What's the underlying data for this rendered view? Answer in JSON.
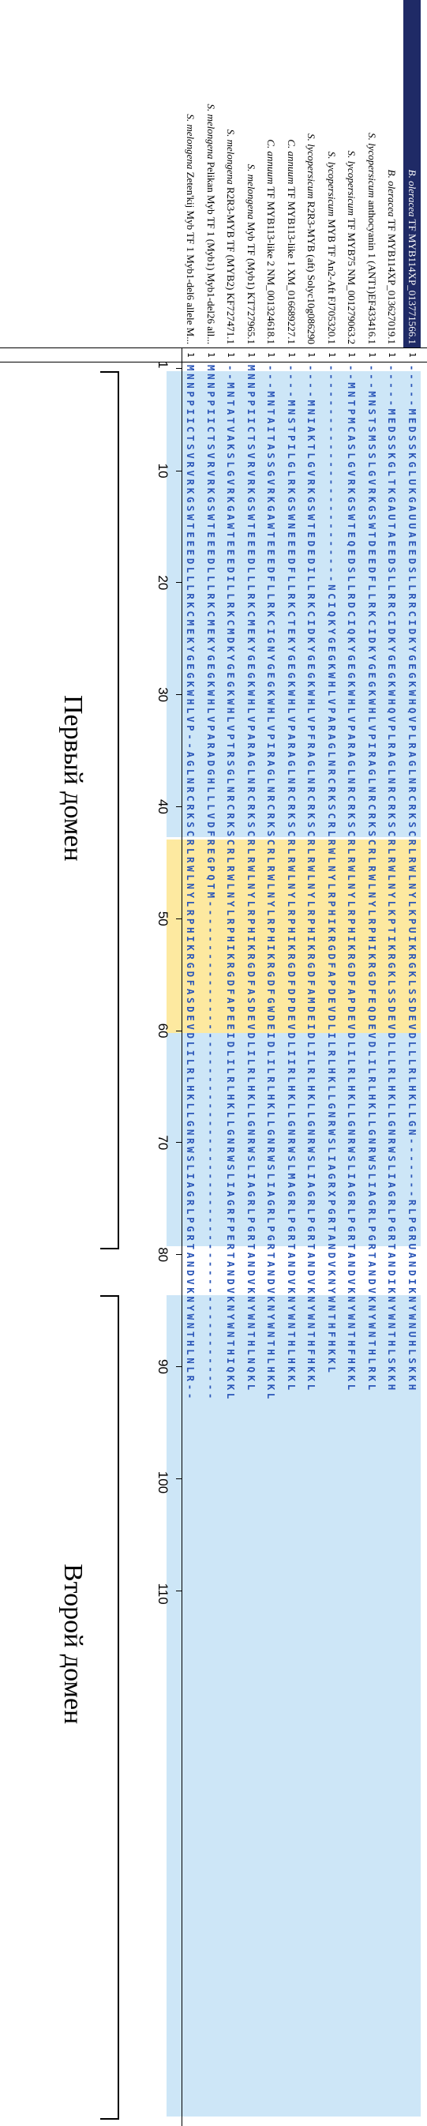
{
  "sequences": [
    {
      "genus": "B. oleracea",
      "rest": " TF MYB114XP_013771566.1",
      "num": "1",
      "seq": "-----MEDSSKGLUKGAUUAEEDSLLRRCIDKYGEGKWHQVPLRAGLNRCRKSCRLRWLNYLKPUIKRGKLSSDEVDLLLRLHKLLGN-------RLPGRUANDIKNYWNUHLSKKH",
      "selected": true
    },
    {
      "genus": "B. oleracea",
      "rest": " TF MYB114XP_013627019.1",
      "num": "1",
      "seq": "-----MEDSSKGLTKGAUTAEEDSLLRRCIDKYGEGKWHQVPLRAGLNRCRKSCRLRWLNYLKPTIKRGKLSSDEVDLLLRLHKLLGNRWSLIAGRLPGRTANDIKNYWNTHLSKKH",
      "selected": false
    },
    {
      "genus": "S. lycopersicum",
      "rest": " anthocyanin 1 (ANT1)EF433416.1",
      "num": "1",
      "seq": "---MNSTSMSSLGVRKGSWTDEEDFLLRKCIDKYGEGKWHLVPIRAGLNRCRKSCRLRWLNYLRPHIKRGDFEQDEVDLILRLHKLLGNRWSLIAGRLPGRTANDVKNYWNTHLRKL",
      "selected": false
    },
    {
      "genus": "S. lycopersicum",
      "rest": " TF MYB75 NM_001279063.2",
      "num": "1",
      "seq": "--MNTPMCASLGVRKGSWTEQEDSLLRDCIQKYGEGKWHLVPARAGLNRCRKSCRLRWLNYLRPHIKRGDFAPDEVDLILRLHKLLGNRWSLIAGRLPGRTANDVKNYWNTHFHKKL",
      "selected": false
    },
    {
      "genus": "S. lycopersicum",
      "rest": " MYB TF An2-Aft FJ705320.1",
      "num": "1",
      "seq": "-------------------------NCIQKYGEGKWHLVPARAGLNRCRKSCRLRWLNYLRPHIKRGDFAPDEVDLILRLHKLLGNRWSLIAGRXPGRTANDVKNYWNTHFHKKL",
      "selected": false
    },
    {
      "genus": "S. lycopersicum",
      "rest": " R2R3-MYB (aft) Solyc10g086290",
      "num": "1",
      "seq": "----MNIAKTLGVRKGSWTEDEDILLRKCIDKYGEGKWHLVPFRAGLNRCRKSCRLRWLNYLRPHIKRGDFAMDEIDLILRLHKLLGNRWSLIAGRLPGRTANDVKNYWNTHFHKKL",
      "selected": false
    },
    {
      "genus": "C. annuum",
      "rest": " TF MYB113-like 1 XM_016689227.1",
      "num": "1",
      "seq": "----MNSTPILGLRKGSWNEEEDFLLRKCTEKYGEGKWHLVPARAGLNRCRKSCRLRWLNYLRPHIKRGDFDPDEVDLIIRLHKLLGNRWSLMAGRLPGRTANDVKNYWNTHLHKKL",
      "selected": false
    },
    {
      "genus": "C. annuum",
      "rest": " TF MYB113-like 2 NM_001324618.1",
      "num": "1",
      "seq": "---MNTAITASSGVRKGAWTEEEDFLLRKCIGNYGEGKWHLVPIRAGLNRCRKSCRLRWLNYLRPHIKRGDFGWDEIDLILRLHKLLGNRWSLIAGRLPGRTANDVKNYWNTHLHKKL",
      "selected": false
    },
    {
      "genus": "S. melongena",
      "rest": " Myb TF (Myb1) KT727965.1",
      "num": "1",
      "seq": "MNNPPIICTSVRVRKGSWTEEEDLLLRKCMEKYGEGKWHLVPARAGLNRCRKSCRLRWLNYLRPHIKRGDFASDEVDLILRLHKLLGNRWSLIAGRLPGRTANDVKNYWNTHLNQKL",
      "selected": false
    },
    {
      "genus": "S. melongena",
      "rest": " R2R3-MYB TF (MYB2) KF727471.1",
      "num": "1",
      "seq": "--MNTATVAKSLGVRKGAWTEEEDILLRKCMDKYGEGKWHLVPTRSGLNRCRKSCRLRWLNYLRPHIKRGDFAPEEIDLILRLHKLLGNRWSLIAGRFPERTANDVKNYWNTHIQKKL",
      "selected": false
    },
    {
      "genus": "S. melongena",
      "rest": " Pelikan Myb TF 1 (Myb1) Myb1-del26 all...",
      "num": "1",
      "seq": "MNNPPIICTSVRVRKGSWTEEEDLLLRKCMEKYGEGKWHLVPARADGHLLLVDFREGPQTM---------------------------------------------------------",
      "selected": false
    },
    {
      "genus": "S. melongena",
      "rest": " Zeten'kij Myb TF 1 Myb1-del6 allele M...",
      "num": "1",
      "seq": "MNNPPIICTSVRVRKGSWTEEEDLLLRKCMEKYGEGKWHLVP--AGLNRCRKSCRLRWLNYLRPHIKRGDFASDEVDLILRLHKLLGNRWSLIAGRLPGRTANDVKNYWNTHLNLR--",
      "selected": false
    }
  ],
  "ruler": {
    "start": "1",
    "ticks": [
      "10",
      "20",
      "30",
      "40",
      "50",
      "60",
      "70",
      "80",
      "90",
      "100",
      "110"
    ]
  },
  "domains": [
    {
      "label": "Первый домен"
    },
    {
      "label": "Второй домен"
    }
  ],
  "colors": {
    "conserved_bg": "#cde6f7",
    "variable_bg": "#fde9a0",
    "residue": "#2b56b8",
    "highlight_residue": "#e8491d",
    "selected_row": "#1f2a66"
  }
}
